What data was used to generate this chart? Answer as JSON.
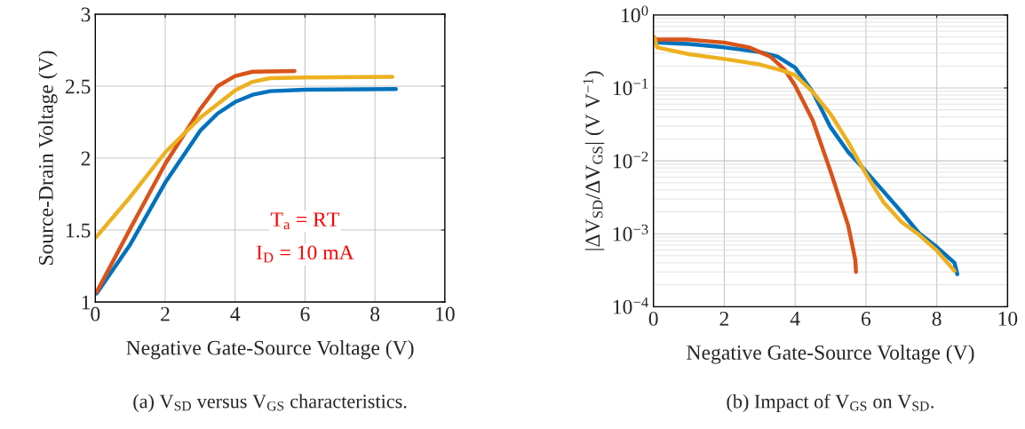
{
  "chart_data": [
    {
      "type": "line",
      "xlabel": "Negative Gate-Source Voltage (V)",
      "ylabel": "Source-Drain Voltage (V)",
      "xlim": [
        0,
        10
      ],
      "ylim": [
        1,
        3
      ],
      "xticks": [
        0,
        2,
        4,
        6,
        8,
        10
      ],
      "yticks": [
        1,
        1.5,
        2,
        2.5,
        3
      ],
      "grid": true,
      "annotations": [
        "T$_{a}$ = RT",
        "I$_{D}$ = 10 mA",
        "(a) V$_{SD}$ versus V$_{GS}$ characteristics."
      ],
      "series": [
        {
          "color": "#0072bd",
          "x": [
            0.04,
            1,
            2,
            3,
            3.5,
            4,
            4.5,
            5,
            6,
            8.6
          ],
          "values": [
            1.06,
            1.4,
            1.83,
            2.19,
            2.31,
            2.39,
            2.44,
            2.465,
            2.475,
            2.48
          ]
        },
        {
          "color": "#d95319",
          "x": [
            0.04,
            1,
            2,
            2.5,
            3,
            3.5,
            4,
            4.5,
            5.7
          ],
          "values": [
            1.07,
            1.51,
            1.96,
            2.15,
            2.34,
            2.5,
            2.57,
            2.6,
            2.605
          ]
        },
        {
          "color": "#edb120",
          "x": [
            0.02,
            1,
            2,
            3,
            4,
            4.5,
            5,
            6,
            8.5
          ],
          "values": [
            1.45,
            1.73,
            2.04,
            2.28,
            2.47,
            2.53,
            2.555,
            2.56,
            2.565
          ]
        }
      ]
    },
    {
      "type": "line",
      "xlabel": "Negative Gate-Source Voltage (V)",
      "ylabel": "|ΔV$_{SD}$/ΔV$_{GS}$| (V V$^{−1}$)",
      "log": "y",
      "xlim": [
        0,
        10
      ],
      "ylim": [
        0.0001,
        1
      ],
      "xticks": [
        0,
        2,
        4,
        6,
        8,
        10
      ],
      "yticks": [
        {
          "value": 0.0001,
          "label": "10$^{−4}$"
        },
        {
          "value": 0.001,
          "label": "10$^{−3}$"
        },
        {
          "value": 0.01,
          "label": "10$^{−2}$"
        },
        {
          "value": 0.1,
          "label": "10$^{−1}$"
        },
        {
          "value": 1,
          "label": "10$^{0}$"
        }
      ],
      "grid": true,
      "annotations": [
        "(b) Impact of V$_{GS}$ on V$_{SD}$."
      ],
      "series": [
        {
          "color": "#0072bd",
          "x": [
            0.05,
            1,
            2,
            3,
            3.5,
            4,
            4.5,
            5,
            5.5,
            6,
            6.5,
            7,
            7.5,
            8,
            8.5,
            8.58
          ],
          "values": [
            0.42,
            0.4,
            0.36,
            0.31,
            0.27,
            0.19,
            0.088,
            0.029,
            0.0132,
            0.0072,
            0.0038,
            0.002,
            0.00102,
            0.00066,
            0.0004,
            0.00028
          ]
        },
        {
          "color": "#d95319",
          "x": [
            0.05,
            1,
            2,
            2.7,
            3.3,
            3.7,
            4,
            4.5,
            5,
            5.5,
            5.7,
            5.72
          ],
          "values": [
            0.46,
            0.46,
            0.42,
            0.36,
            0.27,
            0.18,
            0.108,
            0.036,
            0.0072,
            0.0013,
            0.00044,
            0.0003
          ]
        },
        {
          "color": "#edb120",
          "x": [
            0.03,
            0.1,
            1,
            2,
            3,
            3.7,
            4,
            4.5,
            5,
            5.5,
            6,
            6.5,
            7,
            7.5,
            8,
            8.5
          ],
          "values": [
            0.5,
            0.36,
            0.29,
            0.25,
            0.21,
            0.17,
            0.15,
            0.088,
            0.044,
            0.018,
            0.0066,
            0.0027,
            0.00146,
            0.00097,
            0.00059,
            0.00031
          ]
        }
      ]
    }
  ]
}
